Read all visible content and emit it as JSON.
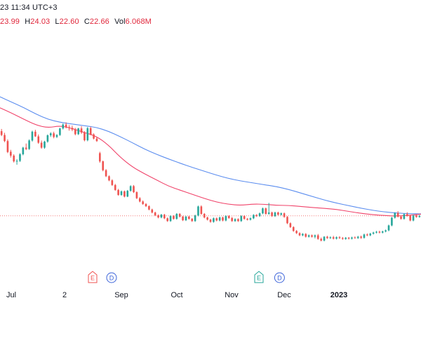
{
  "header": {
    "datetime": "23 11:34 UTC+3",
    "open_value": "23.99",
    "high_label": "H",
    "high_value": "24.03",
    "low_label": "L",
    "low_value": "22.60",
    "close_label": "C",
    "close_value": "22.66",
    "volume_label": "Vol",
    "volume_value": "6.068M"
  },
  "colors": {
    "up": "#26a69a",
    "down": "#ef5350",
    "ma_fast": "#f0436a",
    "ma_slow": "#5b8def",
    "price_line": "#ef5350",
    "axis_text": "#131722",
    "event_earnings": "#ef5350",
    "event_earnings_green": "#26a69a",
    "event_dividend": "#3b63d9"
  },
  "chart_data": {
    "type": "candlestick",
    "x_labels": [
      "Jul",
      "2",
      "Sep",
      "Oct",
      "Nov",
      "Dec",
      "2023"
    ],
    "x_label_bold": [
      "2023"
    ],
    "y_axis_visible": false,
    "grid": false,
    "current_price": 22.66,
    "series": [
      {
        "name": "",
        "kind": "ma_fast",
        "values": [
          44.5,
          42.5,
          40.3,
          38.2,
          37.2,
          38.0,
          37.0,
          35.5,
          34.2,
          31.0,
          26.5,
          23.0,
          20.5,
          18.3,
          16.0,
          14.5,
          13.0,
          11.5,
          10.2,
          9.4,
          9.0,
          9.5,
          9.4,
          9.0,
          9.0,
          8.6,
          8.2,
          7.9,
          7.5,
          6.8,
          6.1,
          5.6,
          5.3,
          5.1,
          5.4,
          5.8
        ]
      },
      {
        "name": "",
        "kind": "ma_slow",
        "values": [
          48.5,
          46.5,
          44.5,
          42.2,
          40.3,
          39.2,
          38.6,
          38.0,
          37.4,
          36.0,
          34.0,
          31.8,
          29.5,
          27.6,
          25.9,
          24.3,
          22.8,
          21.4,
          20.0,
          18.8,
          17.9,
          17.2,
          16.5,
          15.8,
          14.8,
          13.5,
          12.2,
          10.9,
          9.8,
          8.9,
          8.0,
          7.2,
          6.6,
          6.2,
          6.0,
          5.9
        ]
      }
    ],
    "candles": [
      [
        36,
        36.8,
        34.2,
        34.6
      ],
      [
        34.6,
        35.4,
        32,
        32.4
      ],
      [
        32.4,
        33,
        28,
        28.4
      ],
      [
        28.5,
        29.2,
        26.4,
        27.1
      ],
      [
        27.1,
        27.6,
        24.6,
        25
      ],
      [
        25,
        25.8,
        23.8,
        25.2
      ],
      [
        25.2,
        28,
        24.8,
        27.6
      ],
      [
        27.6,
        30.3,
        27.2,
        30
      ],
      [
        30,
        31.5,
        29.1,
        29.5
      ],
      [
        29.5,
        33,
        29.2,
        32.6
      ],
      [
        32.6,
        36.2,
        32.2,
        35.8
      ],
      [
        35.8,
        36.5,
        33.9,
        34.1
      ],
      [
        34.1,
        34.8,
        31.4,
        31.8
      ],
      [
        31.8,
        32.6,
        29.6,
        30
      ],
      [
        30,
        32.5,
        29.6,
        32.2
      ],
      [
        32.2,
        34.8,
        31.8,
        34.5
      ],
      [
        34.5,
        35.6,
        33.9,
        35.2
      ],
      [
        35.2,
        35.8,
        33.4,
        33.9
      ],
      [
        33.9,
        34.9,
        33.5,
        34.6
      ],
      [
        34.6,
        37.2,
        34.3,
        37
      ],
      [
        37,
        38.8,
        36.6,
        38.4
      ],
      [
        38.4,
        39.2,
        37,
        37.4
      ],
      [
        37.4,
        38.2,
        36.2,
        37.2
      ],
      [
        37.2,
        38,
        36,
        36.6
      ],
      [
        36.6,
        37.2,
        34.5,
        34.9
      ],
      [
        34.9,
        37.2,
        34.6,
        37
      ],
      [
        37,
        37.8,
        35,
        35.5
      ],
      [
        35.5,
        36,
        32.3,
        32.7
      ],
      [
        32.7,
        37.5,
        32.3,
        37.1
      ],
      [
        37.1,
        37.6,
        34.5,
        34.8
      ],
      [
        34.8,
        35.2,
        33,
        33.3
      ],
      [
        33.3,
        33.8,
        32.1,
        32.4
      ],
      [
        28,
        28.5,
        24.5,
        25
      ],
      [
        25,
        25.3,
        21.4,
        21.8
      ],
      [
        21.8,
        22.2,
        19.3,
        19.6
      ],
      [
        19.6,
        19.9,
        17.8,
        18.1
      ],
      [
        18.1,
        18.5,
        16.1,
        16.4
      ],
      [
        16.4,
        16.8,
        14.3,
        14.6
      ],
      [
        14.6,
        15,
        12.5,
        12.8
      ],
      [
        12.8,
        14.4,
        12.5,
        14.1
      ],
      [
        14.1,
        14.4,
        11.9,
        12.2
      ],
      [
        12.2,
        14.6,
        12,
        14.3
      ],
      [
        14.3,
        16.3,
        14,
        16
      ],
      [
        16,
        16.4,
        13.5,
        13.8
      ],
      [
        13.8,
        14.1,
        11.3,
        11.6
      ],
      [
        11.6,
        12,
        10.1,
        10.4
      ],
      [
        10.4,
        10.8,
        9.2,
        9.5
      ],
      [
        9.5,
        9.8,
        8.4,
        8.7
      ],
      [
        8.7,
        9,
        7.2,
        7.5
      ],
      [
        7.5,
        7.8,
        6.1,
        6.4
      ],
      [
        6.4,
        6.7,
        5.1,
        5.4
      ],
      [
        5.4,
        5.7,
        4.3,
        4.6
      ],
      [
        4.6,
        5.9,
        4.3,
        5.6
      ],
      [
        5.6,
        5.9,
        4,
        4.3
      ],
      [
        4.3,
        4.6,
        3,
        3.3
      ],
      [
        3.3,
        5.4,
        3,
        5.1
      ],
      [
        5.1,
        5.4,
        3.8,
        4.1
      ],
      [
        4.1,
        6.2,
        3.8,
        5.9
      ],
      [
        5.9,
        6.2,
        4.6,
        4.9
      ],
      [
        4.9,
        5.2,
        3.3,
        3.6
      ],
      [
        3.6,
        5.2,
        3.3,
        4.9
      ],
      [
        4.9,
        5.2,
        3.8,
        4.1
      ],
      [
        4.1,
        4.4,
        3,
        3.3
      ],
      [
        3.3,
        5.6,
        3,
        5.3
      ],
      [
        5.3,
        8.9,
        5,
        8.6
      ],
      [
        8.6,
        9,
        5.6,
        5.9
      ],
      [
        5.9,
        6.2,
        4.3,
        4.6
      ],
      [
        4.6,
        4.9,
        3.5,
        3.8
      ],
      [
        3.8,
        4.1,
        2.7,
        3
      ],
      [
        3,
        4.6,
        2.7,
        4.3
      ],
      [
        4.3,
        4.6,
        3.2,
        3.5
      ],
      [
        3.5,
        4.9,
        3.2,
        4.6
      ],
      [
        4.6,
        4.9,
        3.2,
        3.5
      ],
      [
        3.5,
        5.4,
        3.2,
        5.1
      ],
      [
        5.1,
        5.4,
        4.1,
        4.4
      ],
      [
        4.4,
        4.8,
        3,
        3.3
      ],
      [
        3.3,
        4.3,
        3,
        4
      ],
      [
        4,
        4.3,
        3,
        3.3
      ],
      [
        3.3,
        5.4,
        3,
        5.1
      ],
      [
        5.1,
        5.4,
        3.8,
        4.1
      ],
      [
        4.1,
        4.4,
        3.5,
        3.8
      ],
      [
        3.8,
        4.6,
        3.5,
        4.3
      ],
      [
        4.3,
        5.8,
        4,
        5.5
      ],
      [
        5.5,
        5.8,
        4.8,
        5.1
      ],
      [
        5.1,
        6.4,
        4.8,
        6.1
      ],
      [
        6.1,
        8.2,
        5.8,
        7.9
      ],
      [
        7.9,
        8.2,
        5.6,
        5.9
      ],
      [
        5.9,
        9.9,
        5.6,
        6.4
      ],
      [
        6.4,
        6.7,
        4.8,
        5.1
      ],
      [
        5.1,
        6.7,
        4.8,
        6.4
      ],
      [
        6.4,
        6.7,
        5.3,
        5.6
      ],
      [
        5.6,
        6.4,
        5.3,
        6.1
      ],
      [
        6.1,
        6.4,
        4.5,
        4.8
      ],
      [
        4.8,
        5.1,
        2.2,
        2.5
      ],
      [
        2.5,
        2.8,
        0.8,
        1.1
      ],
      [
        1.1,
        1.4,
        -0.6,
        -0.3
      ],
      [
        -0.3,
        0,
        -1.4,
        -1.1
      ],
      [
        -1.1,
        -0.8,
        -2.2,
        -1.9
      ],
      [
        -1.9,
        -1.1,
        -2.2,
        -1.4
      ],
      [
        -1.4,
        -1.1,
        -2.7,
        -2.4
      ],
      [
        -2.4,
        -1.6,
        -2.7,
        -1.9
      ],
      [
        -1.9,
        -1.6,
        -2.7,
        -2.4
      ],
      [
        -2.4,
        -1.6,
        -3,
        -1.9
      ],
      [
        -1.9,
        -1.4,
        -3.5,
        -3.2
      ],
      [
        -3.2,
        -2.7,
        -4.1,
        -3.8
      ],
      [
        -3.8,
        -2.2,
        -4.1,
        -2.4
      ],
      [
        -2.4,
        -2.1,
        -3.2,
        -2.9
      ],
      [
        -2.9,
        -2.3,
        -3.2,
        -2.6
      ],
      [
        -2.6,
        -2.1,
        -3.4,
        -3.1
      ],
      [
        -3.1,
        -2.3,
        -3.4,
        -2.6
      ],
      [
        -2.6,
        -2.2,
        -3.2,
        -2.9
      ],
      [
        -2.9,
        -2.5,
        -3.5,
        -3.2
      ],
      [
        -3.2,
        -2.5,
        -3.5,
        -2.8
      ],
      [
        -2.8,
        -2.5,
        -3.4,
        -3.1
      ],
      [
        -3.1,
        -2.4,
        -3.4,
        -2.7
      ],
      [
        -2.7,
        -2.3,
        -3.1,
        -2.9
      ],
      [
        -2.9,
        -2.1,
        -3.2,
        -2.4
      ],
      [
        -2.4,
        -2,
        -3.2,
        -2.8
      ],
      [
        -2.8,
        -1.3,
        -3.1,
        -1.6
      ],
      [
        -1.6,
        -1.2,
        -2.2,
        -1.9
      ],
      [
        -1.9,
        -1,
        -2.2,
        -1.3
      ],
      [
        -1.3,
        -0.6,
        -1.6,
        -0.9
      ],
      [
        -0.9,
        -0.3,
        -1.2,
        -0.6
      ],
      [
        -0.6,
        -0.2,
        -1.2,
        -0.9
      ],
      [
        -0.9,
        -0.2,
        -1.2,
        -0.5
      ],
      [
        -0.5,
        0.2,
        -0.8,
        -0.1
      ],
      [
        -0.1,
        2,
        -0.4,
        1.7
      ],
      [
        1.7,
        4.8,
        1.4,
        4.5
      ],
      [
        4.5,
        6.5,
        4.2,
        6.2
      ],
      [
        6.2,
        6.9,
        4.6,
        4.9
      ],
      [
        4.9,
        5.2,
        3.8,
        4.1
      ],
      [
        4.1,
        6.1,
        3.8,
        5.8
      ],
      [
        5.8,
        6.5,
        4.9,
        5.2
      ],
      [
        5.2,
        5.5,
        3.2,
        3.5
      ],
      [
        3.5,
        5.6,
        3.2,
        5.3
      ],
      [
        5.3,
        5.6,
        4.5,
        4.8
      ],
      [
        4.8,
        5.5,
        4.5,
        5.2
      ]
    ],
    "events": [
      {
        "type": "earnings",
        "label": "E",
        "color_key": "event_earnings",
        "at": 0.22
      },
      {
        "type": "dividend",
        "label": "D",
        "color_key": "event_dividend",
        "at": 0.265
      },
      {
        "type": "earnings",
        "label": "E",
        "color_key": "event_earnings_green",
        "at": 0.615
      },
      {
        "type": "dividend",
        "label": "D",
        "color_key": "event_dividend",
        "at": 0.664
      }
    ]
  }
}
